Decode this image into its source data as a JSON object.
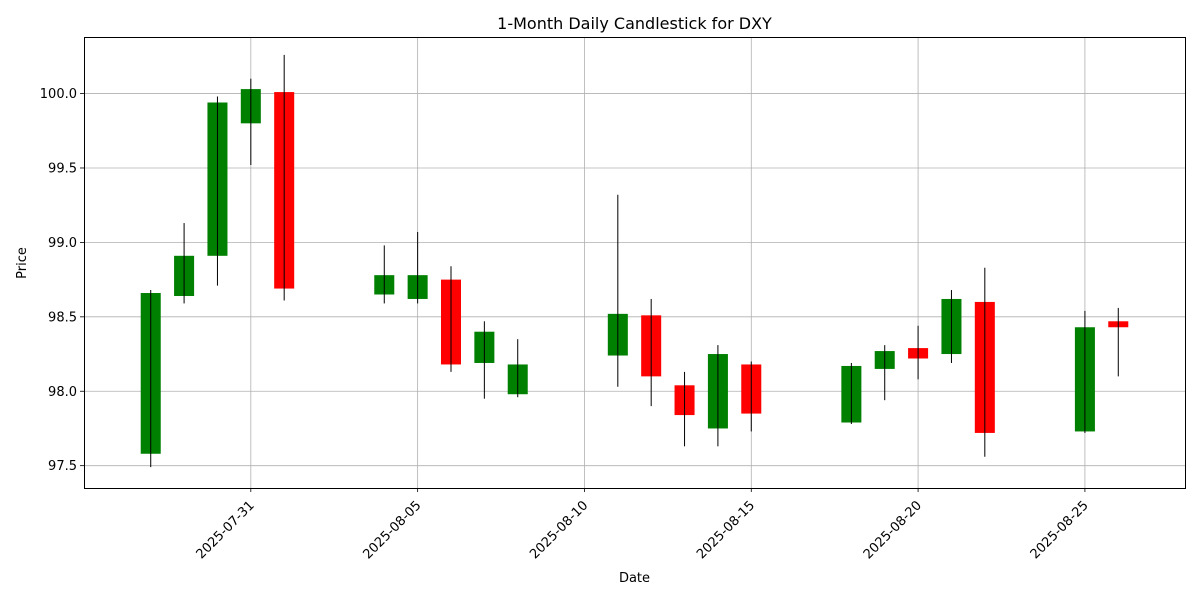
{
  "chart_data": {
    "type": "candlestick",
    "title": "1-Month Daily Candlestick for DXY",
    "xlabel": "Date",
    "ylabel": "Price",
    "ylim": [
      97.35,
      100.38
    ],
    "xlim": [
      "2025-07-26",
      "2025-08-28"
    ],
    "grid": true,
    "up_color": "#008000",
    "down_color": "#ff0000",
    "wick_color": "#000000",
    "y_ticks": [
      97.5,
      98.0,
      98.5,
      99.0,
      99.5,
      100.0
    ],
    "y_tick_labels": [
      "97.5",
      "98.0",
      "98.5",
      "99.0",
      "99.5",
      "100.0"
    ],
    "x_ticks": [
      "2025-07-31",
      "2025-08-05",
      "2025-08-10",
      "2025-08-15",
      "2025-08-20",
      "2025-08-25"
    ],
    "x_tick_labels": [
      "2025-07-31",
      "2025-08-05",
      "2025-08-10",
      "2025-08-15",
      "2025-08-20",
      "2025-08-25"
    ],
    "candles": [
      {
        "date": "2025-07-28",
        "open": 97.58,
        "high": 98.68,
        "low": 97.49,
        "close": 98.66
      },
      {
        "date": "2025-07-29",
        "open": 98.64,
        "high": 99.13,
        "low": 98.59,
        "close": 98.91
      },
      {
        "date": "2025-07-30",
        "open": 98.91,
        "high": 99.98,
        "low": 98.71,
        "close": 99.94
      },
      {
        "date": "2025-07-31",
        "open": 99.8,
        "high": 100.1,
        "low": 99.52,
        "close": 100.03
      },
      {
        "date": "2025-08-01",
        "open": 100.01,
        "high": 100.26,
        "low": 98.61,
        "close": 98.69
      },
      {
        "date": "2025-08-04",
        "open": 98.65,
        "high": 98.98,
        "low": 98.59,
        "close": 98.78
      },
      {
        "date": "2025-08-05",
        "open": 98.62,
        "high": 99.07,
        "low": 98.59,
        "close": 98.78
      },
      {
        "date": "2025-08-06",
        "open": 98.75,
        "high": 98.84,
        "low": 98.13,
        "close": 98.18
      },
      {
        "date": "2025-08-07",
        "open": 98.19,
        "high": 98.47,
        "low": 97.95,
        "close": 98.4
      },
      {
        "date": "2025-08-08",
        "open": 97.98,
        "high": 98.35,
        "low": 97.96,
        "close": 98.18
      },
      {
        "date": "2025-08-11",
        "open": 98.24,
        "high": 99.32,
        "low": 98.03,
        "close": 98.52
      },
      {
        "date": "2025-08-12",
        "open": 98.51,
        "high": 98.62,
        "low": 97.9,
        "close": 98.1
      },
      {
        "date": "2025-08-13",
        "open": 98.04,
        "high": 98.13,
        "low": 97.63,
        "close": 97.84
      },
      {
        "date": "2025-08-14",
        "open": 97.75,
        "high": 98.31,
        "low": 97.63,
        "close": 98.25
      },
      {
        "date": "2025-08-15",
        "open": 98.18,
        "high": 98.2,
        "low": 97.73,
        "close": 97.85
      },
      {
        "date": "2025-08-18",
        "open": 97.79,
        "high": 98.19,
        "low": 97.78,
        "close": 98.17
      },
      {
        "date": "2025-08-19",
        "open": 98.15,
        "high": 98.31,
        "low": 97.94,
        "close": 98.27
      },
      {
        "date": "2025-08-20",
        "open": 98.29,
        "high": 98.44,
        "low": 98.08,
        "close": 98.22
      },
      {
        "date": "2025-08-21",
        "open": 98.25,
        "high": 98.68,
        "low": 98.19,
        "close": 98.62
      },
      {
        "date": "2025-08-22",
        "open": 98.6,
        "high": 98.83,
        "low": 97.56,
        "close": 97.72
      },
      {
        "date": "2025-08-25",
        "open": 97.73,
        "high": 98.54,
        "low": 97.72,
        "close": 98.43
      },
      {
        "date": "2025-08-26",
        "open": 98.47,
        "high": 98.56,
        "low": 98.1,
        "close": 98.43
      }
    ]
  }
}
